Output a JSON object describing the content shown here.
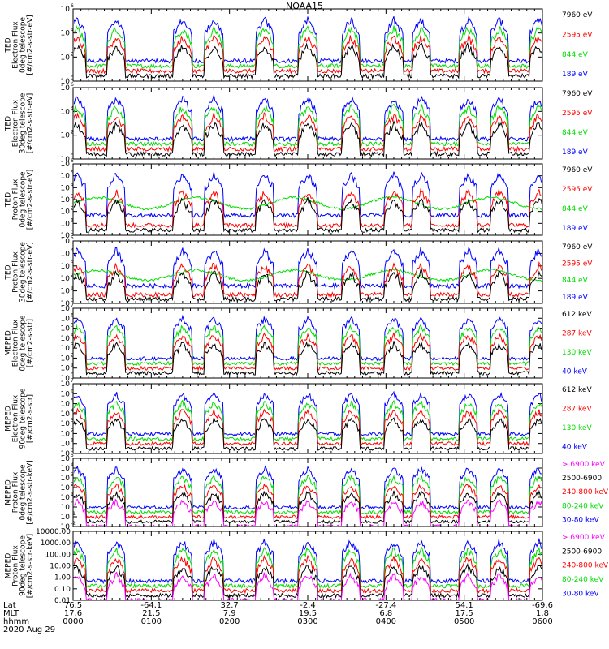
{
  "title": "NOAA15",
  "date_label": "2020 Aug 29",
  "colors": {
    "black": "#000000",
    "red": "#ff0000",
    "green": "#00dd00",
    "blue": "#0000ff",
    "magenta": "#ff00ff"
  },
  "chart_data": [
    {
      "type": "line",
      "panel": 1,
      "ylabel": [
        "TED",
        "Electron Flux",
        "0deg telescope",
        "[#/cm2-s-str-eV]"
      ],
      "yscale": "log",
      "ylim": [
        1,
        1000000
      ],
      "ytick_labels": [
        [
          "10",
          "0"
        ],
        [
          "10",
          "2"
        ],
        [
          "10",
          "4"
        ],
        [
          "10",
          "6"
        ]
      ],
      "series": [
        {
          "name": "7960 eV",
          "color": "#000000"
        },
        {
          "name": "2595 eV",
          "color": "#ff0000"
        },
        {
          "name": "844 eV",
          "color": "#00dd00"
        },
        {
          "name": "189 eV",
          "color": "#0000ff"
        }
      ]
    },
    {
      "type": "line",
      "panel": 2,
      "ylabel": [
        "TED",
        "Electron Flux",
        "30deg telescope",
        "[#/cm2-s-str-eV]"
      ],
      "yscale": "log",
      "ylim": [
        1,
        1000000
      ],
      "ytick_labels": [
        [
          "10",
          "0"
        ],
        [
          "10",
          "2"
        ],
        [
          "10",
          "4"
        ],
        [
          "10",
          "6"
        ]
      ],
      "series": [
        {
          "name": "7960 eV",
          "color": "#000000"
        },
        {
          "name": "2595 eV",
          "color": "#ff0000"
        },
        {
          "name": "844 eV",
          "color": "#00dd00"
        },
        {
          "name": "189 eV",
          "color": "#0000ff"
        }
      ]
    },
    {
      "type": "line",
      "panel": 3,
      "ylabel": [
        "TED",
        "Proton Flux",
        "0deg telescope",
        "[#/cm2-s-str-eV]"
      ],
      "yscale": "log",
      "ylim": [
        1,
        1000000
      ],
      "ytick_labels": [
        [
          "10",
          "0"
        ],
        [
          "10",
          "1"
        ],
        [
          "10",
          "2"
        ],
        [
          "10",
          "3"
        ],
        [
          "10",
          "4"
        ],
        [
          "10",
          "5"
        ],
        [
          "10",
          "6"
        ]
      ],
      "series": [
        {
          "name": "7960 eV",
          "color": "#000000"
        },
        {
          "name": "2595 eV",
          "color": "#ff0000"
        },
        {
          "name": "844 eV",
          "color": "#00dd00"
        },
        {
          "name": "189 eV",
          "color": "#0000ff"
        }
      ]
    },
    {
      "type": "line",
      "panel": 4,
      "ylabel": [
        "TED",
        "Proton Flux",
        "30deg telescope",
        "[#/cm2-s-str-eV]"
      ],
      "yscale": "log",
      "ylim": [
        1,
        100000
      ],
      "ytick_labels": [
        [
          "10",
          "0"
        ],
        [
          "10",
          "1"
        ],
        [
          "10",
          "2"
        ],
        [
          "10",
          "3"
        ],
        [
          "10",
          "4"
        ],
        [
          "10",
          "5"
        ]
      ],
      "series": [
        {
          "name": "7960 eV",
          "color": "#000000"
        },
        {
          "name": "2595 eV",
          "color": "#ff0000"
        },
        {
          "name": "844 eV",
          "color": "#00dd00"
        },
        {
          "name": "189 eV",
          "color": "#0000ff"
        }
      ]
    },
    {
      "type": "line",
      "panel": 5,
      "ylabel": [
        "MEPED",
        "Electron Flux",
        "0deg telescope",
        "[#/cm2-s-str]"
      ],
      "yscale": "log",
      "ylim": [
        1,
        10000000
      ],
      "ytick_labels": [
        [
          "10",
          "0"
        ],
        [
          "10",
          "1"
        ],
        [
          "10",
          "2"
        ],
        [
          "10",
          "3"
        ],
        [
          "10",
          "4"
        ],
        [
          "10",
          "5"
        ],
        [
          "10",
          "6"
        ],
        [
          "10",
          "7"
        ]
      ],
      "series": [
        {
          "name": "612 keV",
          "color": "#000000"
        },
        {
          "name": "287 keV",
          "color": "#ff0000"
        },
        {
          "name": "130 keV",
          "color": "#00dd00"
        },
        {
          "name": "40 keV",
          "color": "#0000ff"
        }
      ]
    },
    {
      "type": "line",
      "panel": 6,
      "ylabel": [
        "MEPED",
        "Electron Flux",
        "90deg telescope",
        "[#/cm2-s-str]"
      ],
      "yscale": "log",
      "ylim": [
        1,
        10000000
      ],
      "ytick_labels": [
        [
          "10",
          "0"
        ],
        [
          "10",
          "1"
        ],
        [
          "10",
          "2"
        ],
        [
          "10",
          "3"
        ],
        [
          "10",
          "4"
        ],
        [
          "10",
          "5"
        ],
        [
          "10",
          "6"
        ],
        [
          "10",
          "7"
        ]
      ],
      "series": [
        {
          "name": "612 keV",
          "color": "#000000"
        },
        {
          "name": "287 keV",
          "color": "#ff0000"
        },
        {
          "name": "130 keV",
          "color": "#00dd00"
        },
        {
          "name": "40 keV",
          "color": "#0000ff"
        }
      ]
    },
    {
      "type": "line",
      "panel": 7,
      "ylabel": [
        "MEPED",
        "Proton Flux",
        "0deg telescope",
        "[#/cm2-s-str-keV]"
      ],
      "yscale": "log",
      "ylim": [
        0.01,
        100000
      ],
      "ytick_labels": [
        [
          "10",
          "-2"
        ],
        [
          "10",
          "-1"
        ],
        [
          "10",
          "0"
        ],
        [
          "10",
          "1"
        ],
        [
          "10",
          "2"
        ],
        [
          "10",
          "3"
        ],
        [
          "10",
          "4"
        ],
        [
          "10",
          "5"
        ]
      ],
      "series": [
        {
          "name": "> 6900 keV",
          "color": "#ff00ff"
        },
        {
          "name": "2500-6900",
          "color": "#000000"
        },
        {
          "name": "240-800 keV",
          "color": "#ff0000"
        },
        {
          "name": "80-240 keV",
          "color": "#00dd00"
        },
        {
          "name": "30-80 keV",
          "color": "#0000ff"
        }
      ]
    },
    {
      "type": "line",
      "panel": 8,
      "ylabel": [
        "MEPED",
        "Proton Flux",
        "90deg telescope",
        "[#/cm2-s-str-keV]"
      ],
      "yscale": "log",
      "ylim": [
        0.01,
        10000
      ],
      "ytick_labels": [
        [
          "0.01"
        ],
        [
          "0.10"
        ],
        [
          "1.00"
        ],
        [
          "10.00"
        ],
        [
          "100.00"
        ],
        [
          "1000.00"
        ],
        [
          "10000.00"
        ]
      ],
      "series": [
        {
          "name": "> 6900 keV",
          "color": "#ff00ff"
        },
        {
          "name": "2500-6900",
          "color": "#000000"
        },
        {
          "name": "240-800 keV",
          "color": "#ff0000"
        },
        {
          "name": "80-240 keV",
          "color": "#00dd00"
        },
        {
          "name": "30-80 keV",
          "color": "#0000ff"
        }
      ]
    }
  ],
  "xaxis": {
    "row_labels": [
      "Lat",
      "MLT",
      "hhmm"
    ],
    "xlim_hours": [
      0,
      6
    ],
    "ticks": [
      {
        "hour": 0,
        "lat": "76.5",
        "mlt": "17.6",
        "hhmm": "0000"
      },
      {
        "hour": 1,
        "lat": "-64.1",
        "mlt": "21.5",
        "hhmm": "0100"
      },
      {
        "hour": 2,
        "lat": "32.7",
        "mlt": "7.9",
        "hhmm": "0200"
      },
      {
        "hour": 3,
        "lat": "-2.4",
        "mlt": "19.5",
        "hhmm": "0300"
      },
      {
        "hour": 4,
        "lat": "-27.4",
        "mlt": "6.8",
        "hhmm": "0400"
      },
      {
        "hour": 5,
        "lat": "54.1",
        "mlt": "17.5",
        "hhmm": "0500"
      },
      {
        "hour": 6,
        "lat": "-69.6",
        "mlt": "1.8",
        "hhmm": "0600"
      }
    ]
  }
}
